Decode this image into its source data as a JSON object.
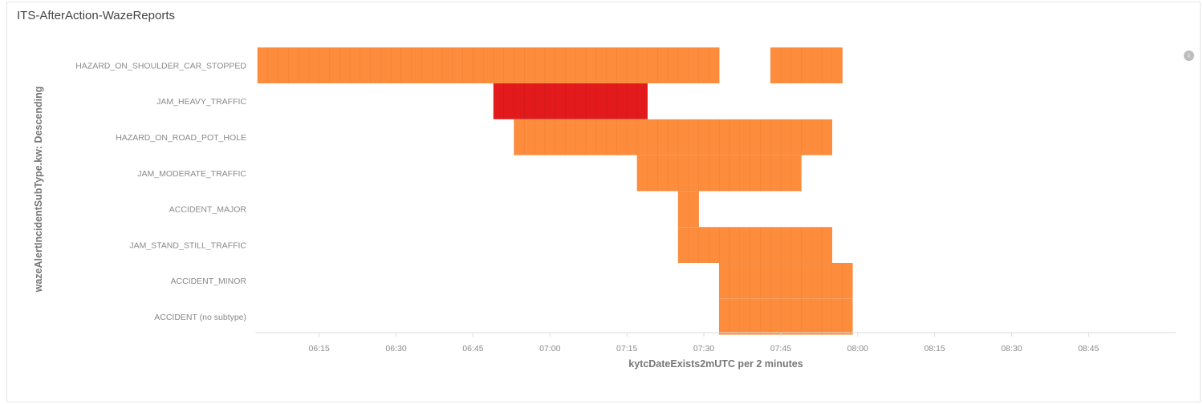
{
  "panel": {
    "title": "ITS-AfterAction-WazeReports"
  },
  "chart_data": {
    "type": "heatmap",
    "title": "",
    "xlabel": "kytcDateExists2mUTC per 2 minutes",
    "ylabel": "wazeAlertIncidentSubType.kw: Descending",
    "categories": [
      "HAZARD_ON_SHOULDER_CAR_STOPPED",
      "JAM_HEAVY_TRAFFIC",
      "HAZARD_ON_ROAD_POT_HOLE",
      "JAM_MODERATE_TRAFFIC",
      "ACCIDENT_MAJOR",
      "JAM_STAND_STILL_TRAFFIC",
      "ACCIDENT_MINOR",
      "ACCIDENT (no subtype)"
    ],
    "x_ticks": [
      "06:15",
      "06:30",
      "06:45",
      "07:00",
      "07:15",
      "07:30",
      "07:45",
      "08:00",
      "08:15",
      "08:30",
      "08:45"
    ],
    "xlim": [
      "06:03",
      "09:02"
    ],
    "bin_minutes": 2,
    "colors": {
      "low": "#fd8d3c",
      "high": "#e31a1c"
    },
    "segments": [
      {
        "category": "HAZARD_ON_SHOULDER_CAR_STOPPED",
        "start": "06:03",
        "end": "07:33",
        "level": "low"
      },
      {
        "category": "HAZARD_ON_SHOULDER_CAR_STOPPED",
        "start": "07:43",
        "end": "07:57",
        "level": "low"
      },
      {
        "category": "JAM_HEAVY_TRAFFIC",
        "start": "06:49",
        "end": "07:19",
        "level": "high"
      },
      {
        "category": "HAZARD_ON_ROAD_POT_HOLE",
        "start": "06:53",
        "end": "07:55",
        "level": "low"
      },
      {
        "category": "JAM_MODERATE_TRAFFIC",
        "start": "07:17",
        "end": "07:49",
        "level": "low"
      },
      {
        "category": "ACCIDENT_MAJOR",
        "start": "07:25",
        "end": "07:29",
        "level": "low"
      },
      {
        "category": "JAM_STAND_STILL_TRAFFIC",
        "start": "07:25",
        "end": "07:55",
        "level": "low"
      },
      {
        "category": "ACCIDENT_MINOR",
        "start": "07:33",
        "end": "07:59",
        "level": "low"
      },
      {
        "category": "ACCIDENT (no subtype)",
        "start": "07:33",
        "end": "07:59",
        "level": "low"
      }
    ]
  }
}
